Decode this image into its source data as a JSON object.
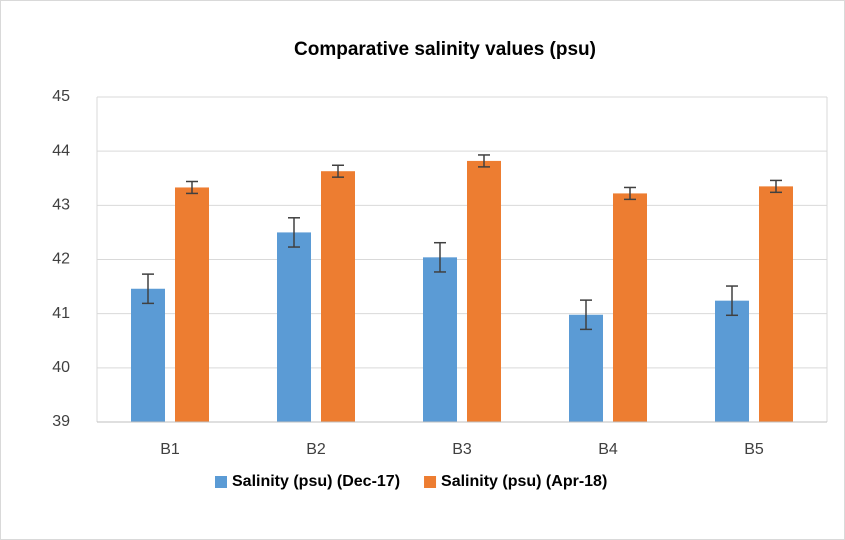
{
  "chart_data": {
    "type": "bar",
    "title": "Comparative salinity values (psu)",
    "categories": [
      "B1",
      "B2",
      "B3",
      "B4",
      "B5"
    ],
    "series": [
      {
        "name": "Salinity (psu) (Dec-17)",
        "color": "#5b9bd5",
        "values": [
          41.46,
          42.5,
          42.04,
          40.98,
          41.24
        ],
        "errors": [
          0.27,
          0.27,
          0.27,
          0.27,
          0.27
        ]
      },
      {
        "name": "Salinity (psu) (Apr-18)",
        "color": "#ed7d31",
        "values": [
          43.33,
          43.63,
          43.82,
          43.22,
          43.35
        ],
        "errors": [
          0.11,
          0.11,
          0.11,
          0.11,
          0.11
        ]
      }
    ],
    "ylim": [
      39,
      45
    ],
    "yticks": [
      39,
      40,
      41,
      42,
      43,
      44,
      45
    ],
    "grid": true,
    "legend": "bottom"
  }
}
